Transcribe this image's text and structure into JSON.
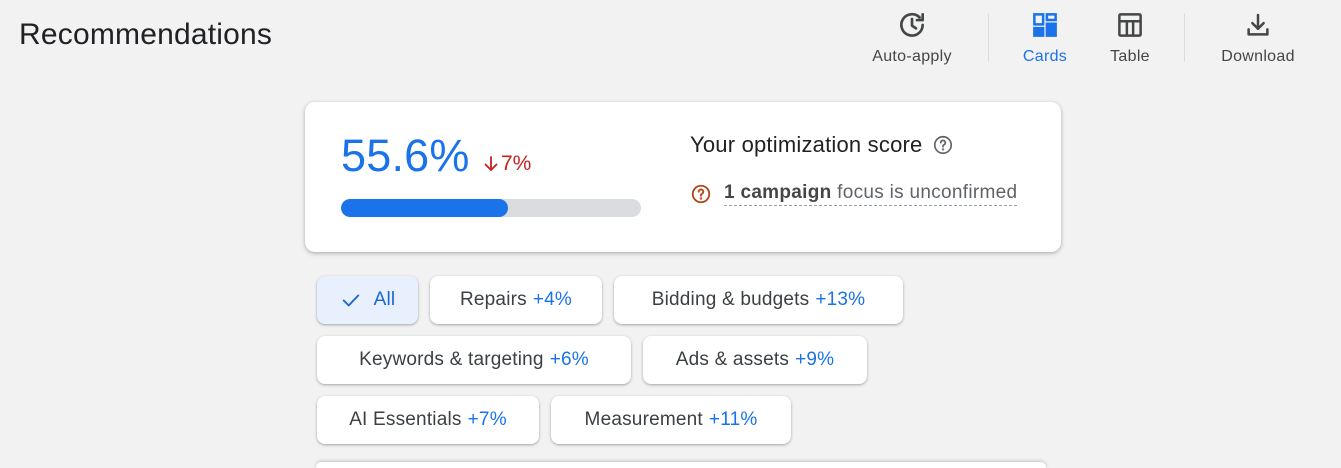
{
  "header": {
    "title": "Recommendations"
  },
  "toolbar": {
    "auto_apply": "Auto-apply",
    "cards": "Cards",
    "table": "Table",
    "download": "Download",
    "active_color": "#1a73e8"
  },
  "score_card": {
    "score": "55.6%",
    "score_fraction": 0.556,
    "delta": "7%",
    "delta_direction": "down",
    "title": "Your optimization score",
    "warning_bold": "1 campaign",
    "warning_rest": " focus is unconfirmed"
  },
  "filters": [
    {
      "label": "All",
      "pct": "",
      "selected": true
    },
    {
      "label": "Repairs",
      "pct": "+4%"
    },
    {
      "label": "Bidding & budgets",
      "pct": "+13%"
    },
    {
      "label": "Keywords & targeting",
      "pct": "+6%"
    },
    {
      "label": "Ads & assets",
      "pct": "+9%"
    },
    {
      "label": "AI Essentials",
      "pct": "+7%"
    },
    {
      "label": "Measurement",
      "pct": "+11%"
    }
  ],
  "colors": {
    "accent": "#1a73e8",
    "negative": "#c5221f",
    "warning": "#b3471d"
  }
}
